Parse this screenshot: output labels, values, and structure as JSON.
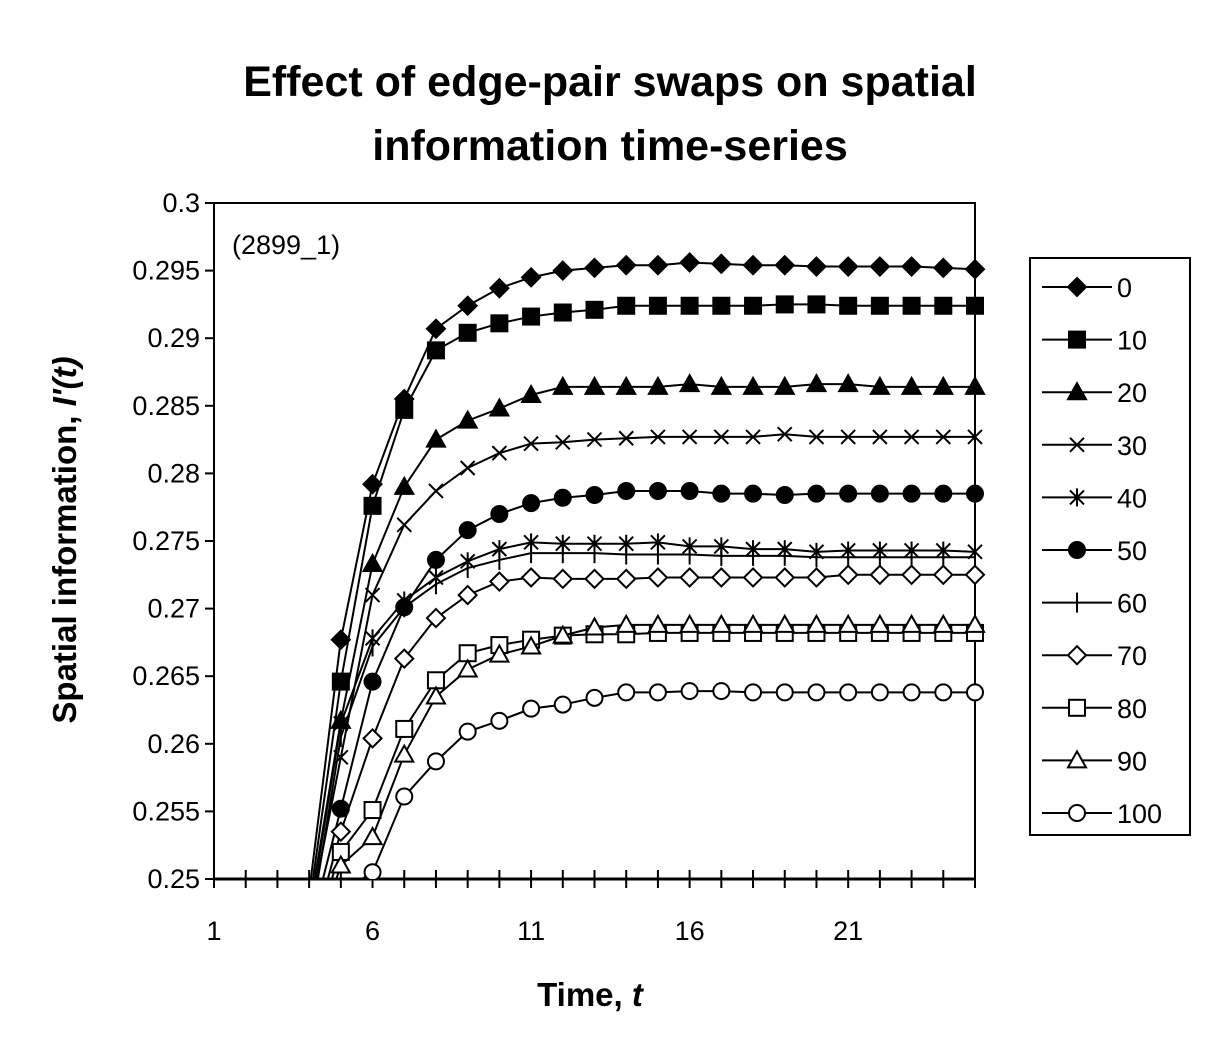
{
  "chart_data": {
    "type": "line",
    "title": "Effect of edge-pair swaps on spatial information time-series",
    "title_lines": [
      "Effect of edge-pair swaps on spatial",
      "information time-series"
    ],
    "annotation": "(2899_1)",
    "xlabel": "Time, ",
    "xlabel_var": "t",
    "ylabel": "Spatial information, ",
    "ylabel_var": "I'(t)",
    "xlim": [
      1,
      25
    ],
    "ylim": [
      0.25,
      0.3
    ],
    "x_ticks": [
      "1",
      "6",
      "11",
      "16",
      "21"
    ],
    "y_ticks": [
      "0.25",
      "0.255",
      "0.26",
      "0.265",
      "0.27",
      "0.275",
      "0.28",
      "0.285",
      "0.29",
      "0.295",
      "0.3"
    ],
    "grid": false,
    "legend_position": "right",
    "x": [
      1,
      2,
      3,
      4,
      5,
      6,
      7,
      8,
      9,
      10,
      11,
      12,
      13,
      14,
      15,
      16,
      17,
      18,
      19,
      20,
      21,
      22,
      23,
      24,
      25
    ],
    "series": [
      {
        "name": "0",
        "marker": "diamond",
        "filled": true,
        "values": [
          null,
          null,
          null,
          0.249,
          0.2677,
          0.2792,
          0.2855,
          0.2907,
          0.2924,
          0.2937,
          0.2945,
          0.295,
          0.2952,
          0.2954,
          0.2954,
          0.2956,
          0.2955,
          0.2954,
          0.2954,
          0.2953,
          0.2953,
          0.2953,
          0.2953,
          0.2952,
          0.2951
        ]
      },
      {
        "name": "10",
        "marker": "square",
        "filled": true,
        "values": [
          null,
          null,
          null,
          0.248,
          0.2646,
          0.2776,
          0.2847,
          0.2891,
          0.2904,
          0.2911,
          0.2916,
          0.2919,
          0.2921,
          0.2924,
          0.2924,
          0.2924,
          0.2924,
          0.2924,
          0.2925,
          0.2925,
          0.2924,
          0.2924,
          0.2924,
          0.2924,
          0.2924
        ]
      },
      {
        "name": "20",
        "marker": "triangle",
        "filled": true,
        "values": [
          null,
          null,
          null,
          0.2475,
          0.2617,
          0.2733,
          0.279,
          0.2825,
          0.2839,
          0.2848,
          0.2858,
          0.2864,
          0.2864,
          0.2864,
          0.2864,
          0.2866,
          0.2864,
          0.2864,
          0.2864,
          0.2866,
          0.2866,
          0.2864,
          0.2864,
          0.2864,
          0.2864
        ]
      },
      {
        "name": "30",
        "marker": "x",
        "filled": false,
        "values": [
          null,
          null,
          null,
          0.247,
          0.259,
          0.271,
          0.2762,
          0.2787,
          0.2804,
          0.2815,
          0.2822,
          0.2823,
          0.2825,
          0.2826,
          0.2827,
          0.2827,
          0.2827,
          0.2827,
          0.2829,
          0.2827,
          0.2827,
          0.2827,
          0.2827,
          0.2827,
          0.2827
        ]
      },
      {
        "name": "40",
        "marker": "asterisk",
        "filled": false,
        "values": [
          null,
          null,
          null,
          0.247,
          0.2615,
          0.2678,
          0.2706,
          0.2723,
          0.2735,
          0.2744,
          0.2749,
          0.2748,
          0.2748,
          0.2748,
          0.2749,
          0.2746,
          0.2746,
          0.2744,
          0.2744,
          0.2742,
          0.2743,
          0.2743,
          0.2743,
          0.2743,
          0.2742
        ]
      },
      {
        "name": "50",
        "marker": "circle",
        "filled": true,
        "values": [
          null,
          null,
          null,
          0.246,
          0.2552,
          0.2646,
          0.2701,
          0.2736,
          0.2758,
          0.277,
          0.2778,
          0.2782,
          0.2784,
          0.2787,
          0.2787,
          0.2787,
          0.2785,
          0.2785,
          0.2784,
          0.2785,
          0.2785,
          0.2785,
          0.2785,
          0.2785,
          0.2785
        ]
      },
      {
        "name": "60",
        "marker": "plus",
        "filled": false,
        "values": [
          null,
          null,
          null,
          0.246,
          0.2605,
          0.2672,
          0.2701,
          0.2718,
          0.273,
          0.2736,
          0.2741,
          0.2741,
          0.2741,
          0.274,
          0.274,
          0.274,
          0.2739,
          0.2739,
          0.2739,
          0.2738,
          0.2738,
          0.2738,
          0.2738,
          0.2738,
          0.2738
        ]
      },
      {
        "name": "70",
        "marker": "diamond",
        "filled": false,
        "values": [
          null,
          null,
          null,
          0.245,
          0.2535,
          0.2604,
          0.2663,
          0.2693,
          0.271,
          0.272,
          0.2723,
          0.2722,
          0.2722,
          0.2722,
          0.2723,
          0.2723,
          0.2723,
          0.2723,
          0.2723,
          0.2723,
          0.2725,
          0.2725,
          0.2725,
          0.2725,
          0.2725
        ]
      },
      {
        "name": "80",
        "marker": "square",
        "filled": false,
        "values": [
          null,
          null,
          null,
          0.245,
          0.252,
          0.2551,
          0.2611,
          0.2647,
          0.2667,
          0.2673,
          0.2677,
          0.268,
          0.2681,
          0.2681,
          0.2682,
          0.2682,
          0.2682,
          0.2682,
          0.2682,
          0.2682,
          0.2682,
          0.2682,
          0.2682,
          0.2682,
          0.2682
        ]
      },
      {
        "name": "90",
        "marker": "triangle",
        "filled": false,
        "values": [
          null,
          null,
          null,
          0.244,
          0.251,
          0.2531,
          0.2592,
          0.2635,
          0.2655,
          0.2666,
          0.2672,
          0.268,
          0.2686,
          0.2688,
          0.2688,
          0.2688,
          0.2688,
          0.2688,
          0.2688,
          0.2688,
          0.2688,
          0.2688,
          0.2688,
          0.2688,
          0.2688
        ]
      },
      {
        "name": "100",
        "marker": "circle",
        "filled": false,
        "values": [
          null,
          null,
          null,
          0.243,
          0.249,
          0.2505,
          0.2561,
          0.2587,
          0.2609,
          0.2617,
          0.2626,
          0.2629,
          0.2634,
          0.2638,
          0.2638,
          0.2639,
          0.2639,
          0.2638,
          0.2638,
          0.2638,
          0.2638,
          0.2638,
          0.2638,
          0.2638,
          0.2638
        ]
      }
    ]
  }
}
